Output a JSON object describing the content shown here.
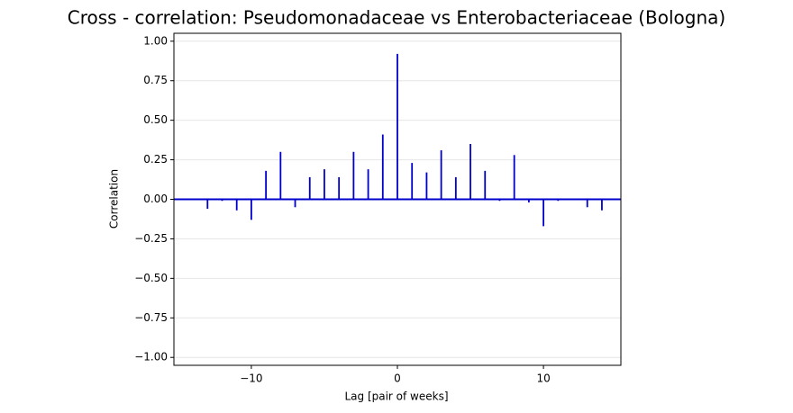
{
  "chart_data": {
    "type": "stem",
    "title": "Cross - correlation: Pseudomonadaceae vs Enterobacteriaceae (Bologna)",
    "x_label": "Lag [pair of weeks]",
    "y_label": "Correlation",
    "x": [
      -14,
      -13,
      -12,
      -11,
      -10,
      -9,
      -8,
      -7,
      -6,
      -5,
      -4,
      -3,
      -2,
      -1,
      0,
      1,
      2,
      3,
      4,
      5,
      6,
      7,
      8,
      9,
      10,
      11,
      12,
      13,
      14
    ],
    "values": [
      0.0,
      -0.06,
      -0.01,
      -0.07,
      -0.13,
      0.18,
      0.3,
      -0.05,
      0.14,
      0.19,
      0.14,
      0.3,
      0.19,
      0.41,
      0.92,
      0.23,
      0.17,
      0.31,
      0.14,
      0.35,
      0.18,
      -0.01,
      0.28,
      -0.02,
      -0.17,
      -0.01,
      0.0,
      -0.05,
      -0.07
    ],
    "color": "#0000cc",
    "xlim": [
      -15.3,
      15.3
    ],
    "ylim": [
      -1.05,
      1.05
    ],
    "xticks": [
      {
        "value": -10,
        "label": "−10"
      },
      0,
      10
    ],
    "yticks": [
      {
        "value": -1,
        "label": "−1.00"
      },
      {
        "value": -0.75,
        "label": "−0.75"
      },
      {
        "value": -0.5,
        "label": "−0.50"
      },
      {
        "value": -0.25,
        "label": "−0.25"
      },
      {
        "value": 0,
        "label": "0.00"
      },
      {
        "value": 0.25,
        "label": "0.25"
      },
      {
        "value": 0.5,
        "label": "0.50"
      },
      {
        "value": 0.75,
        "label": "0.75"
      },
      {
        "value": 1,
        "label": "1.00"
      }
    ],
    "grid": true
  }
}
